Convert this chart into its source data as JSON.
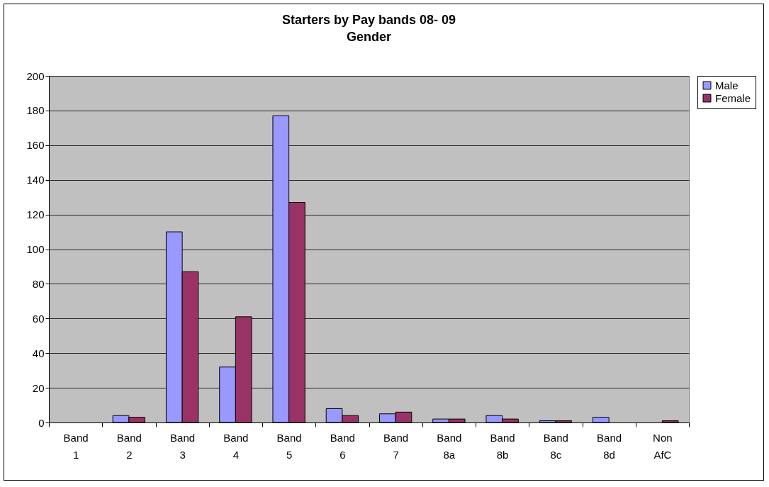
{
  "chart_data": {
    "type": "bar",
    "title": "Starters by Pay bands 08- 09",
    "subtitle": "Gender",
    "categories": [
      "Band 1",
      "Band 2",
      "Band 3",
      "Band 4",
      "Band 5",
      "Band 6",
      "Band 7",
      "Band 8a",
      "Band 8b",
      "Band 8c",
      "Band 8d",
      "Non AfC"
    ],
    "series": [
      {
        "name": "Male",
        "color": "#9999ff",
        "values": [
          0,
          4,
          110,
          32,
          177,
          8,
          5,
          2,
          4,
          1,
          3,
          0
        ]
      },
      {
        "name": "Female",
        "color": "#993366",
        "values": [
          0,
          3,
          87,
          61,
          127,
          4,
          6,
          2,
          2,
          1,
          0,
          1
        ]
      }
    ],
    "ylim": [
      0,
      200
    ],
    "yticks": [
      0,
      20,
      40,
      60,
      80,
      100,
      120,
      140,
      160,
      180,
      200
    ],
    "grid": "y",
    "legend": "right"
  }
}
